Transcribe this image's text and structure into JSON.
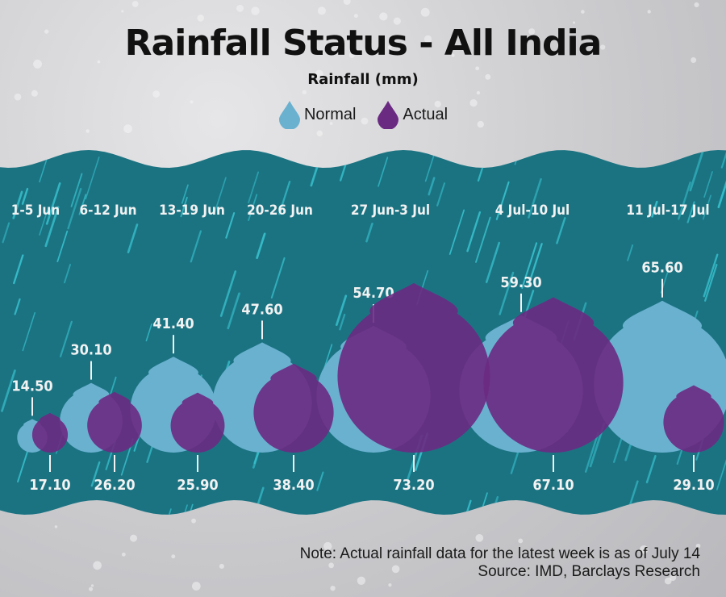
{
  "title": "Rainfall Status - All India",
  "subtitle": "Rainfall (mm)",
  "legend": {
    "normal": "Normal",
    "actual": "Actual"
  },
  "colors": {
    "normal": "#6ab1d0",
    "actual": "#6b2a82",
    "band": "#1b7382",
    "rain": "#39c3cf",
    "text": "#f2f2f2"
  },
  "note": "Note: Actual rainfall data for the latest week is as of July 14",
  "source": "Source: IMD, Barclays Research",
  "chart_data": {
    "type": "bar",
    "title": "Rainfall Status - All India",
    "ylabel": "Rainfall (mm)",
    "categories": [
      "1-5 Jun",
      "6-12 Jun",
      "13-19 Jun",
      "20-26 Jun",
      "27 Jun-3 Jul",
      "4 Jul-10 Jul",
      "11 Jul-17 Jul"
    ],
    "series": [
      {
        "name": "Normal",
        "values": [
          14.5,
          30.1,
          41.4,
          47.6,
          54.7,
          59.3,
          65.6
        ],
        "labels": [
          "14.50",
          "30.10",
          "41.40",
          "47.60",
          "54.70",
          "59.30",
          "65.60"
        ]
      },
      {
        "name": "Actual",
        "values": [
          17.1,
          26.2,
          25.9,
          38.4,
          73.2,
          67.1,
          29.1
        ],
        "labels": [
          "17.10",
          "26.20",
          "25.90",
          "38.40",
          "73.20",
          "67.10",
          "29.10"
        ]
      }
    ],
    "legend": "top-center"
  }
}
